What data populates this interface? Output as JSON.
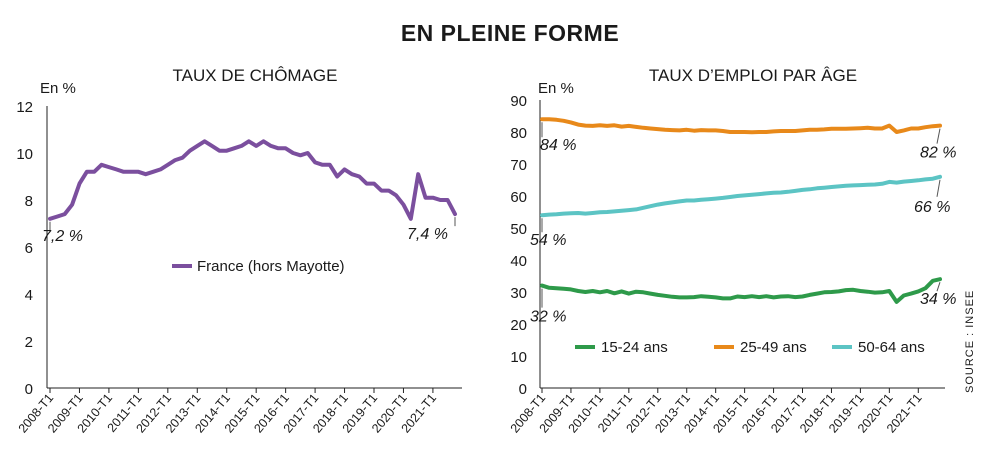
{
  "title": "EN PLEINE FORME",
  "source": "SOURCE : INSEE",
  "chart_data": [
    {
      "type": "line",
      "title": "TAUX DE CHÔMAGE",
      "unit": "En %",
      "ylim": [
        0,
        12
      ],
      "yticks": [
        "0",
        "2",
        "4",
        "6",
        "8",
        "10",
        "12"
      ],
      "xlim": [
        "2008-T1",
        "2021-T4"
      ],
      "xticks": [
        "2008-T1",
        "2009-T1",
        "2010-T1",
        "2011-T1",
        "2012-T1",
        "2013-T1",
        "2014-T1",
        "2015-T1",
        "2016-T1",
        "2017-T1",
        "2018-T1",
        "2019-T1",
        "2020-T1",
        "2021-T1"
      ],
      "annotations": [
        {
          "text": "7,2 %",
          "x": "2008-T1",
          "y": 7.2
        },
        {
          "text": "7,4 %",
          "x": "2021-T4",
          "y": 7.4
        }
      ],
      "series": [
        {
          "name": "France (hors Mayotte)",
          "color": "#7b4f9e",
          "x": [
            "2008-T1",
            "2008-T2",
            "2008-T3",
            "2008-T4",
            "2009-T1",
            "2009-T2",
            "2009-T3",
            "2009-T4",
            "2010-T1",
            "2010-T2",
            "2010-T3",
            "2010-T4",
            "2011-T1",
            "2011-T2",
            "2011-T3",
            "2011-T4",
            "2012-T1",
            "2012-T2",
            "2012-T3",
            "2012-T4",
            "2013-T1",
            "2013-T2",
            "2013-T3",
            "2013-T4",
            "2014-T1",
            "2014-T2",
            "2014-T3",
            "2014-T4",
            "2015-T1",
            "2015-T2",
            "2015-T3",
            "2015-T4",
            "2016-T1",
            "2016-T2",
            "2016-T3",
            "2016-T4",
            "2017-T1",
            "2017-T2",
            "2017-T3",
            "2017-T4",
            "2018-T1",
            "2018-T2",
            "2018-T3",
            "2018-T4",
            "2019-T1",
            "2019-T2",
            "2019-T3",
            "2019-T4",
            "2020-T1",
            "2020-T2",
            "2020-T3",
            "2020-T4",
            "2021-T1",
            "2021-T2",
            "2021-T3",
            "2021-T4"
          ],
          "values": [
            7.2,
            7.3,
            7.4,
            7.8,
            8.7,
            9.2,
            9.2,
            9.5,
            9.4,
            9.3,
            9.2,
            9.2,
            9.2,
            9.1,
            9.2,
            9.3,
            9.5,
            9.7,
            9.8,
            10.1,
            10.3,
            10.5,
            10.3,
            10.1,
            10.1,
            10.2,
            10.3,
            10.5,
            10.3,
            10.5,
            10.3,
            10.2,
            10.2,
            10.0,
            9.9,
            10.0,
            9.6,
            9.5,
            9.5,
            9.0,
            9.3,
            9.1,
            9.0,
            8.7,
            8.7,
            8.4,
            8.4,
            8.2,
            7.8,
            7.2,
            9.1,
            8.1,
            8.1,
            8.0,
            8.0,
            7.4
          ]
        }
      ]
    },
    {
      "type": "line",
      "title": "TAUX D’EMPLOI PAR ÂGE",
      "unit": "En %",
      "ylim": [
        0,
        90
      ],
      "yticks": [
        "0",
        "10",
        "20",
        "30",
        "40",
        "50",
        "60",
        "70",
        "80",
        "90"
      ],
      "xlim": [
        "2008-T1",
        "2021-T4"
      ],
      "xticks": [
        "2008-T1",
        "2009-T1",
        "2010-T1",
        "2011-T1",
        "2012-T1",
        "2013-T1",
        "2014-T1",
        "2015-T1",
        "2016-T1",
        "2017-T1",
        "2018-T1",
        "2019-T1",
        "2020-T1",
        "2021-T1"
      ],
      "annotations": [
        {
          "text": "84  %",
          "x": "2008-T1",
          "y": 84
        },
        {
          "text": "82 %",
          "x": "2021-T4",
          "y": 82
        },
        {
          "text": "54 %",
          "x": "2008-T1",
          "y": 54
        },
        {
          "text": "66 %",
          "x": "2021-T4",
          "y": 66
        },
        {
          "text": "32 %",
          "x": "2008-T1",
          "y": 32
        },
        {
          "text": "34 %",
          "x": "2021-T4",
          "y": 34
        }
      ],
      "series": [
        {
          "name": "15-24 ans",
          "color": "#2e9a4a",
          "values": [
            32,
            31.3,
            31.2,
            31,
            30.8,
            30.3,
            30,
            30.3,
            29.9,
            30.3,
            29.6,
            30.2,
            29.5,
            30.1,
            29.9,
            29.5,
            29.1,
            28.8,
            28.5,
            28.3,
            28.3,
            28.4,
            28.7,
            28.5,
            28.3,
            28,
            28,
            28.6,
            28.4,
            28.7,
            28.4,
            28.7,
            28.3,
            28.6,
            28.7,
            28.4,
            28.6,
            29.1,
            29.5,
            29.9,
            30,
            30.2,
            30.6,
            30.7,
            30.3,
            30.1,
            29.8,
            29.9,
            30.3,
            26.9,
            28.9,
            29.5,
            30.2,
            31.2,
            33.5,
            34
          ]
        },
        {
          "name": "25-49 ans",
          "color": "#e8891a",
          "values": [
            84,
            84,
            83.8,
            83.5,
            83,
            82.3,
            82,
            81.9,
            82.1,
            81.9,
            82.1,
            81.7,
            81.9,
            81.6,
            81.3,
            81.1,
            80.9,
            80.7,
            80.6,
            80.5,
            80.7,
            80.4,
            80.6,
            80.5,
            80.5,
            80.3,
            80,
            80,
            80,
            79.9,
            80,
            80,
            80.2,
            80.3,
            80.3,
            80.3,
            80.5,
            80.7,
            80.7,
            80.8,
            81,
            81,
            81,
            81.1,
            81.2,
            81.3,
            81.1,
            81.1,
            82,
            80,
            80.5,
            81.1,
            81.1,
            81.5,
            81.8,
            82
          ]
        },
        {
          "name": "50-64 ans",
          "color": "#5cc4c4",
          "values": [
            54,
            54.2,
            54.3,
            54.5,
            54.6,
            54.7,
            54.5,
            54.7,
            54.9,
            55,
            55.2,
            55.4,
            55.6,
            55.8,
            56.3,
            56.8,
            57.3,
            57.7,
            58,
            58.3,
            58.6,
            58.6,
            58.8,
            59,
            59.2,
            59.4,
            59.7,
            60,
            60.2,
            60.4,
            60.6,
            60.8,
            61,
            61.1,
            61.3,
            61.6,
            61.9,
            62.1,
            62.4,
            62.6,
            62.8,
            63,
            63.2,
            63.3,
            63.4,
            63.5,
            63.6,
            63.8,
            64.4,
            64.2,
            64.5,
            64.7,
            64.9,
            65.2,
            65.4,
            66
          ]
        }
      ]
    }
  ]
}
